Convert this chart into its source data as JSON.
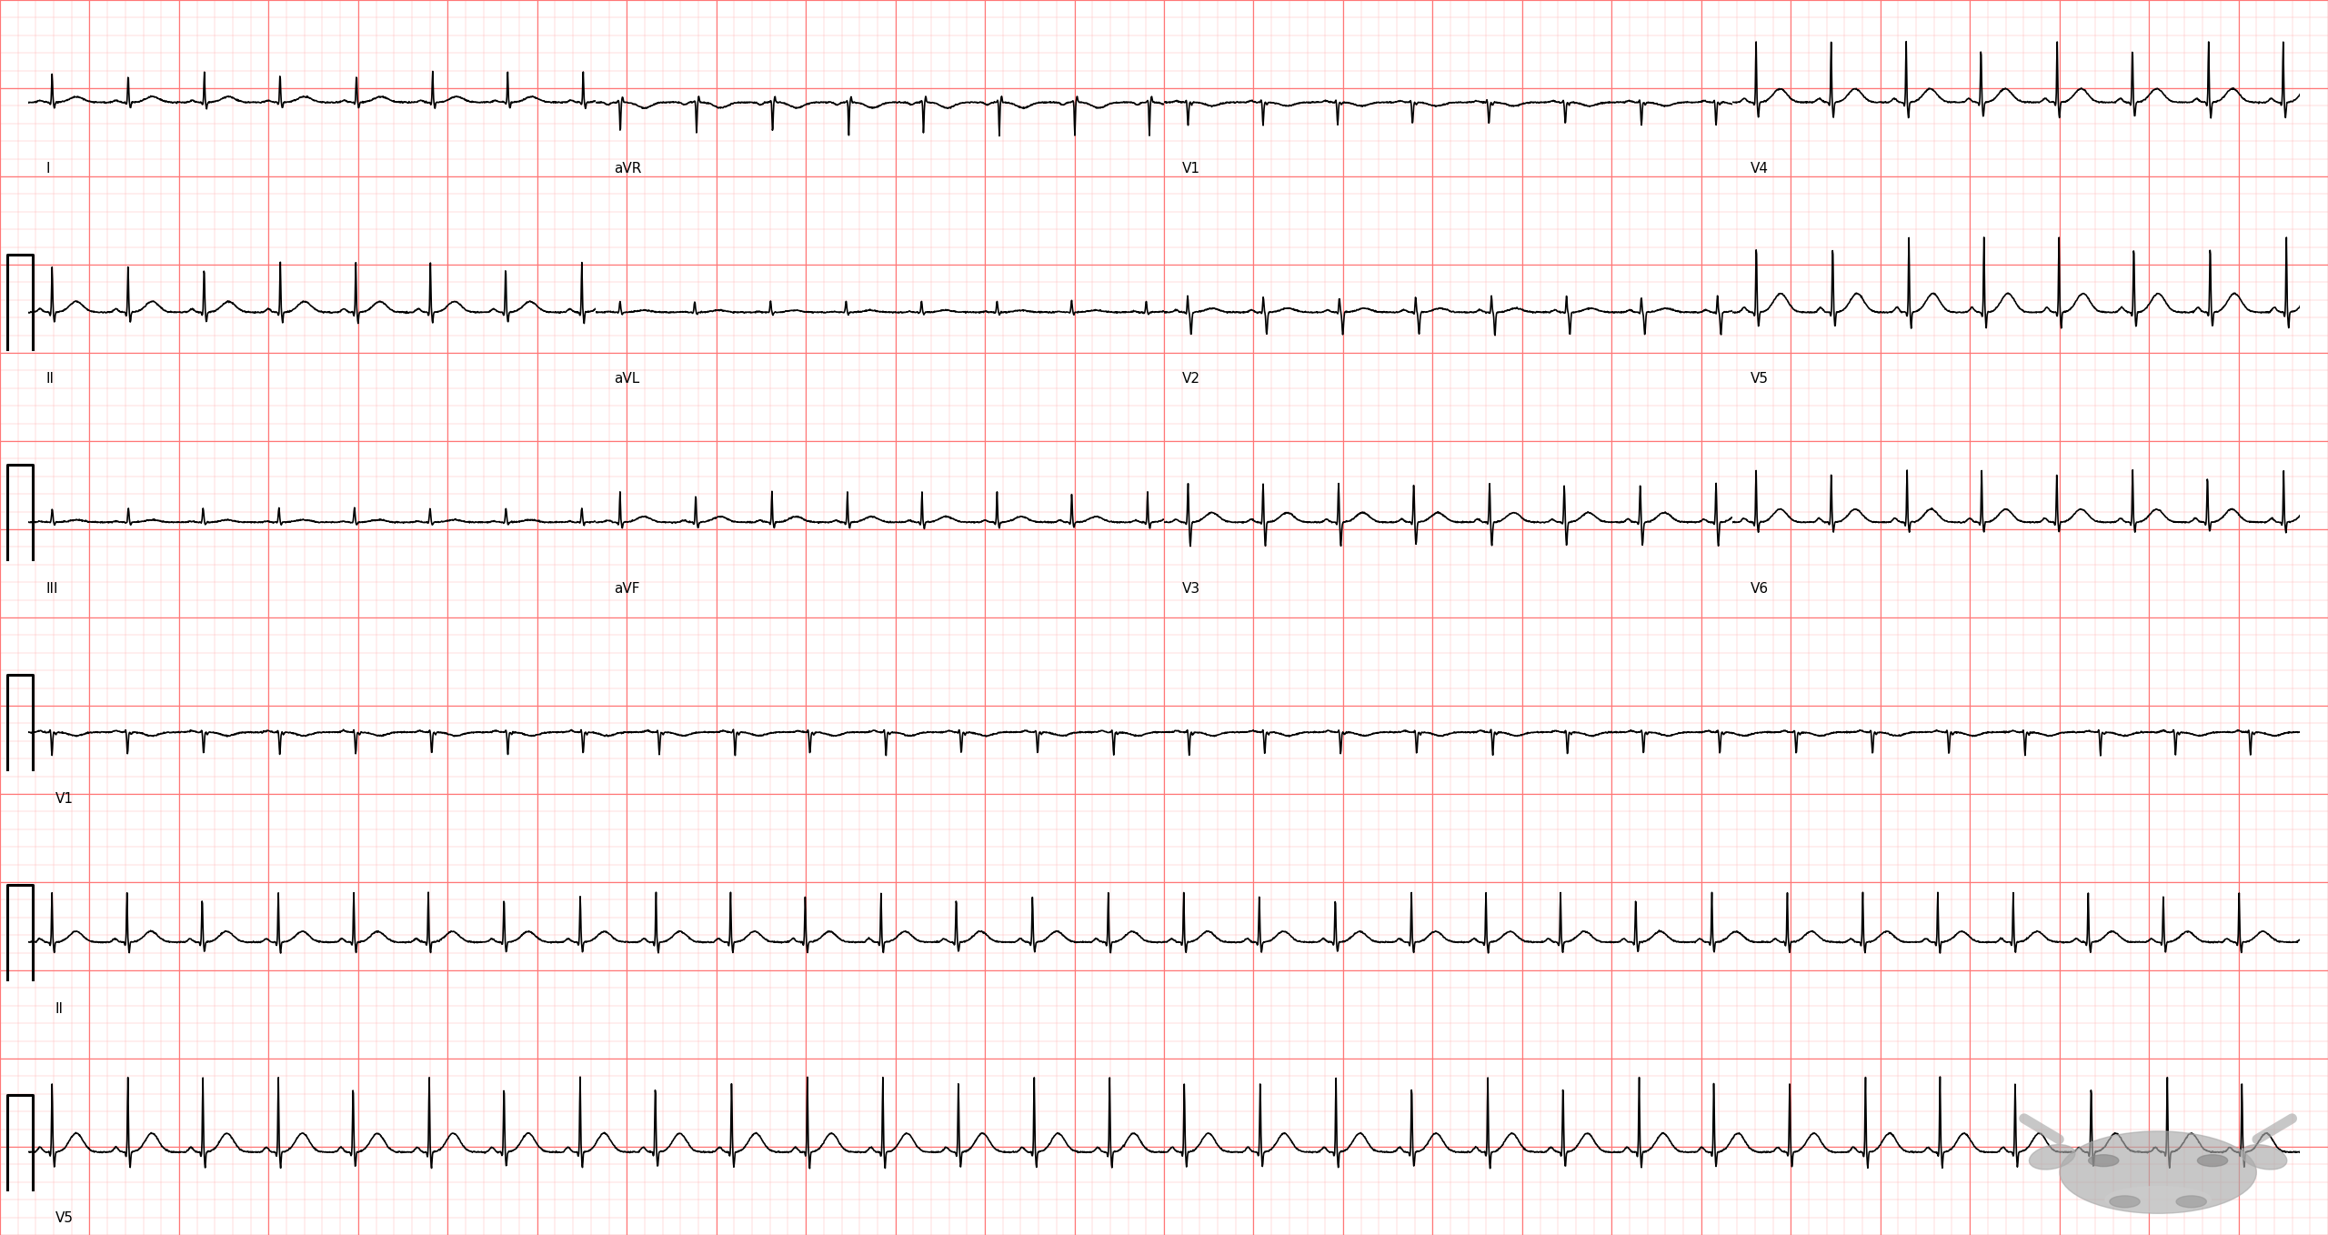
{
  "background_color": "#FFFFFF",
  "grid_minor_color": "#FFBBBB",
  "grid_major_color": "#FF7777",
  "ecg_color": "#000000",
  "label_color": "#000000",
  "fig_width": 25.6,
  "fig_height": 13.58,
  "dpi": 100,
  "heart_rate": 180,
  "top3_col_labels": [
    [
      "I",
      "aVR",
      "V1",
      "V4"
    ],
    [
      "II",
      "aVL",
      "V2",
      "V5"
    ],
    [
      "III",
      "aVF",
      "V3",
      "V6"
    ]
  ],
  "long_strip_labels": [
    "V1",
    "II",
    "V5"
  ],
  "amplitudes": {
    "I": 0.55,
    "II": 0.75,
    "III": 0.4,
    "aVR": 0.6,
    "aVL": 0.4,
    "aVF": 0.55,
    "V1": 0.5,
    "V2": 0.65,
    "V3": 0.85,
    "V4": 0.95,
    "V5": 1.05,
    "V6": 0.85
  },
  "noise_level": 0.006,
  "logo_color": "#BBBBBB"
}
